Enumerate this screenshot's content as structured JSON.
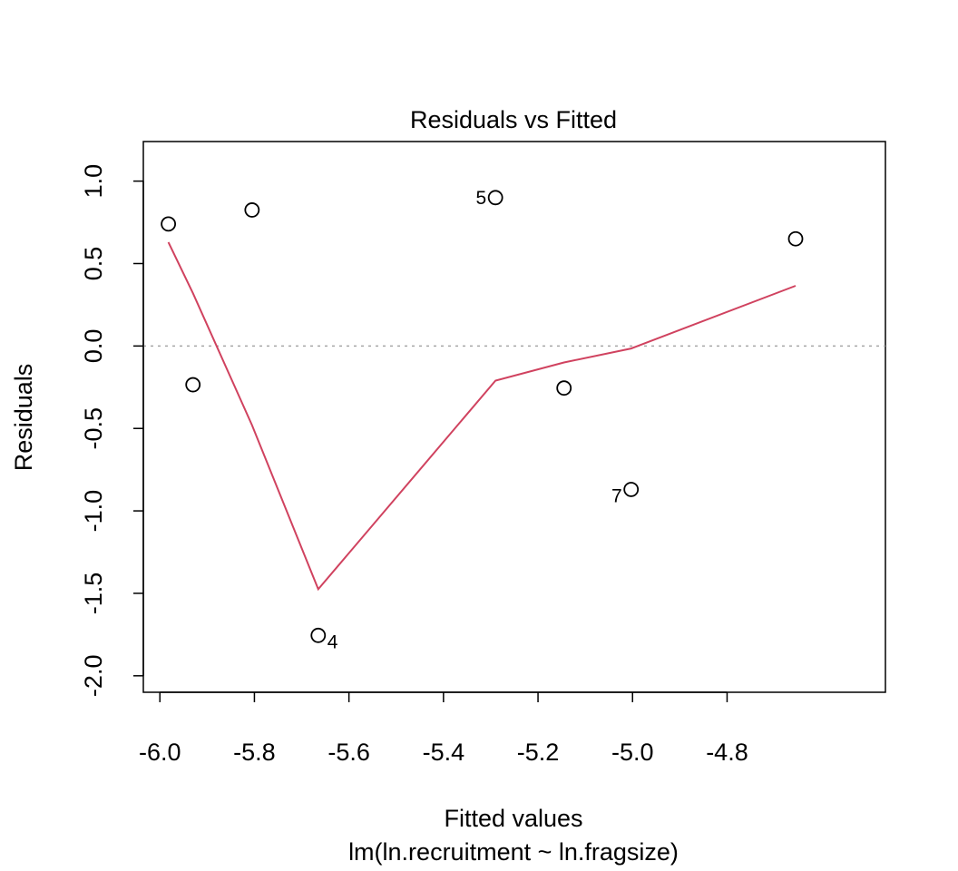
{
  "chart_data": {
    "type": "scatter",
    "title": "Residuals vs Fitted",
    "xlabel": "Fitted values",
    "subtitle": "lm(ln.recruitment ~ ln.fragsize)",
    "ylabel": "Residuals",
    "xlim": [
      -6.035,
      -4.465
    ],
    "ylim": [
      -2.1,
      1.24
    ],
    "x_ticks": [
      -6.0,
      -5.8,
      -5.6,
      -5.4,
      -5.2,
      -5.0,
      -4.8
    ],
    "x_tick_labels": [
      "-6.0",
      "-5.8",
      "-5.6",
      "-5.4",
      "-5.2",
      "-5.0",
      "-4.8"
    ],
    "y_ticks": [
      -2.0,
      -1.5,
      -1.0,
      -0.5,
      0.0,
      0.5,
      1.0
    ],
    "y_tick_labels": [
      "-2.0",
      "-1.5",
      "-1.0",
      "-0.5",
      "0.0",
      "0.5",
      "1.0"
    ],
    "grid": false,
    "reference_line": {
      "y": 0.0,
      "style": "dotted",
      "color": "#a6a6a6"
    },
    "points": [
      {
        "x": -5.982,
        "y": 0.74,
        "label": ""
      },
      {
        "x": -5.93,
        "y": -0.235,
        "label": ""
      },
      {
        "x": -5.805,
        "y": 0.825,
        "label": ""
      },
      {
        "x": -5.665,
        "y": -1.755,
        "label": "4",
        "label_side": "right-below"
      },
      {
        "x": -5.29,
        "y": 0.9,
        "label": "5",
        "label_side": "left"
      },
      {
        "x": -5.145,
        "y": -0.255,
        "label": ""
      },
      {
        "x": -5.003,
        "y": -0.87,
        "label": "7",
        "label_side": "left-below"
      },
      {
        "x": -4.655,
        "y": 0.65,
        "label": ""
      }
    ],
    "smoother": {
      "color": "#d0425f",
      "x": [
        -5.982,
        -5.93,
        -5.805,
        -5.665,
        -5.29,
        -5.145,
        -5.003,
        -4.655
      ],
      "y": [
        0.63,
        0.32,
        -0.48,
        -1.475,
        -0.21,
        -0.1,
        -0.015,
        0.365
      ]
    },
    "colors": {
      "points": "#000000",
      "axes": "#000000",
      "smoother": "#d0425f",
      "reference": "#a6a6a6"
    }
  }
}
